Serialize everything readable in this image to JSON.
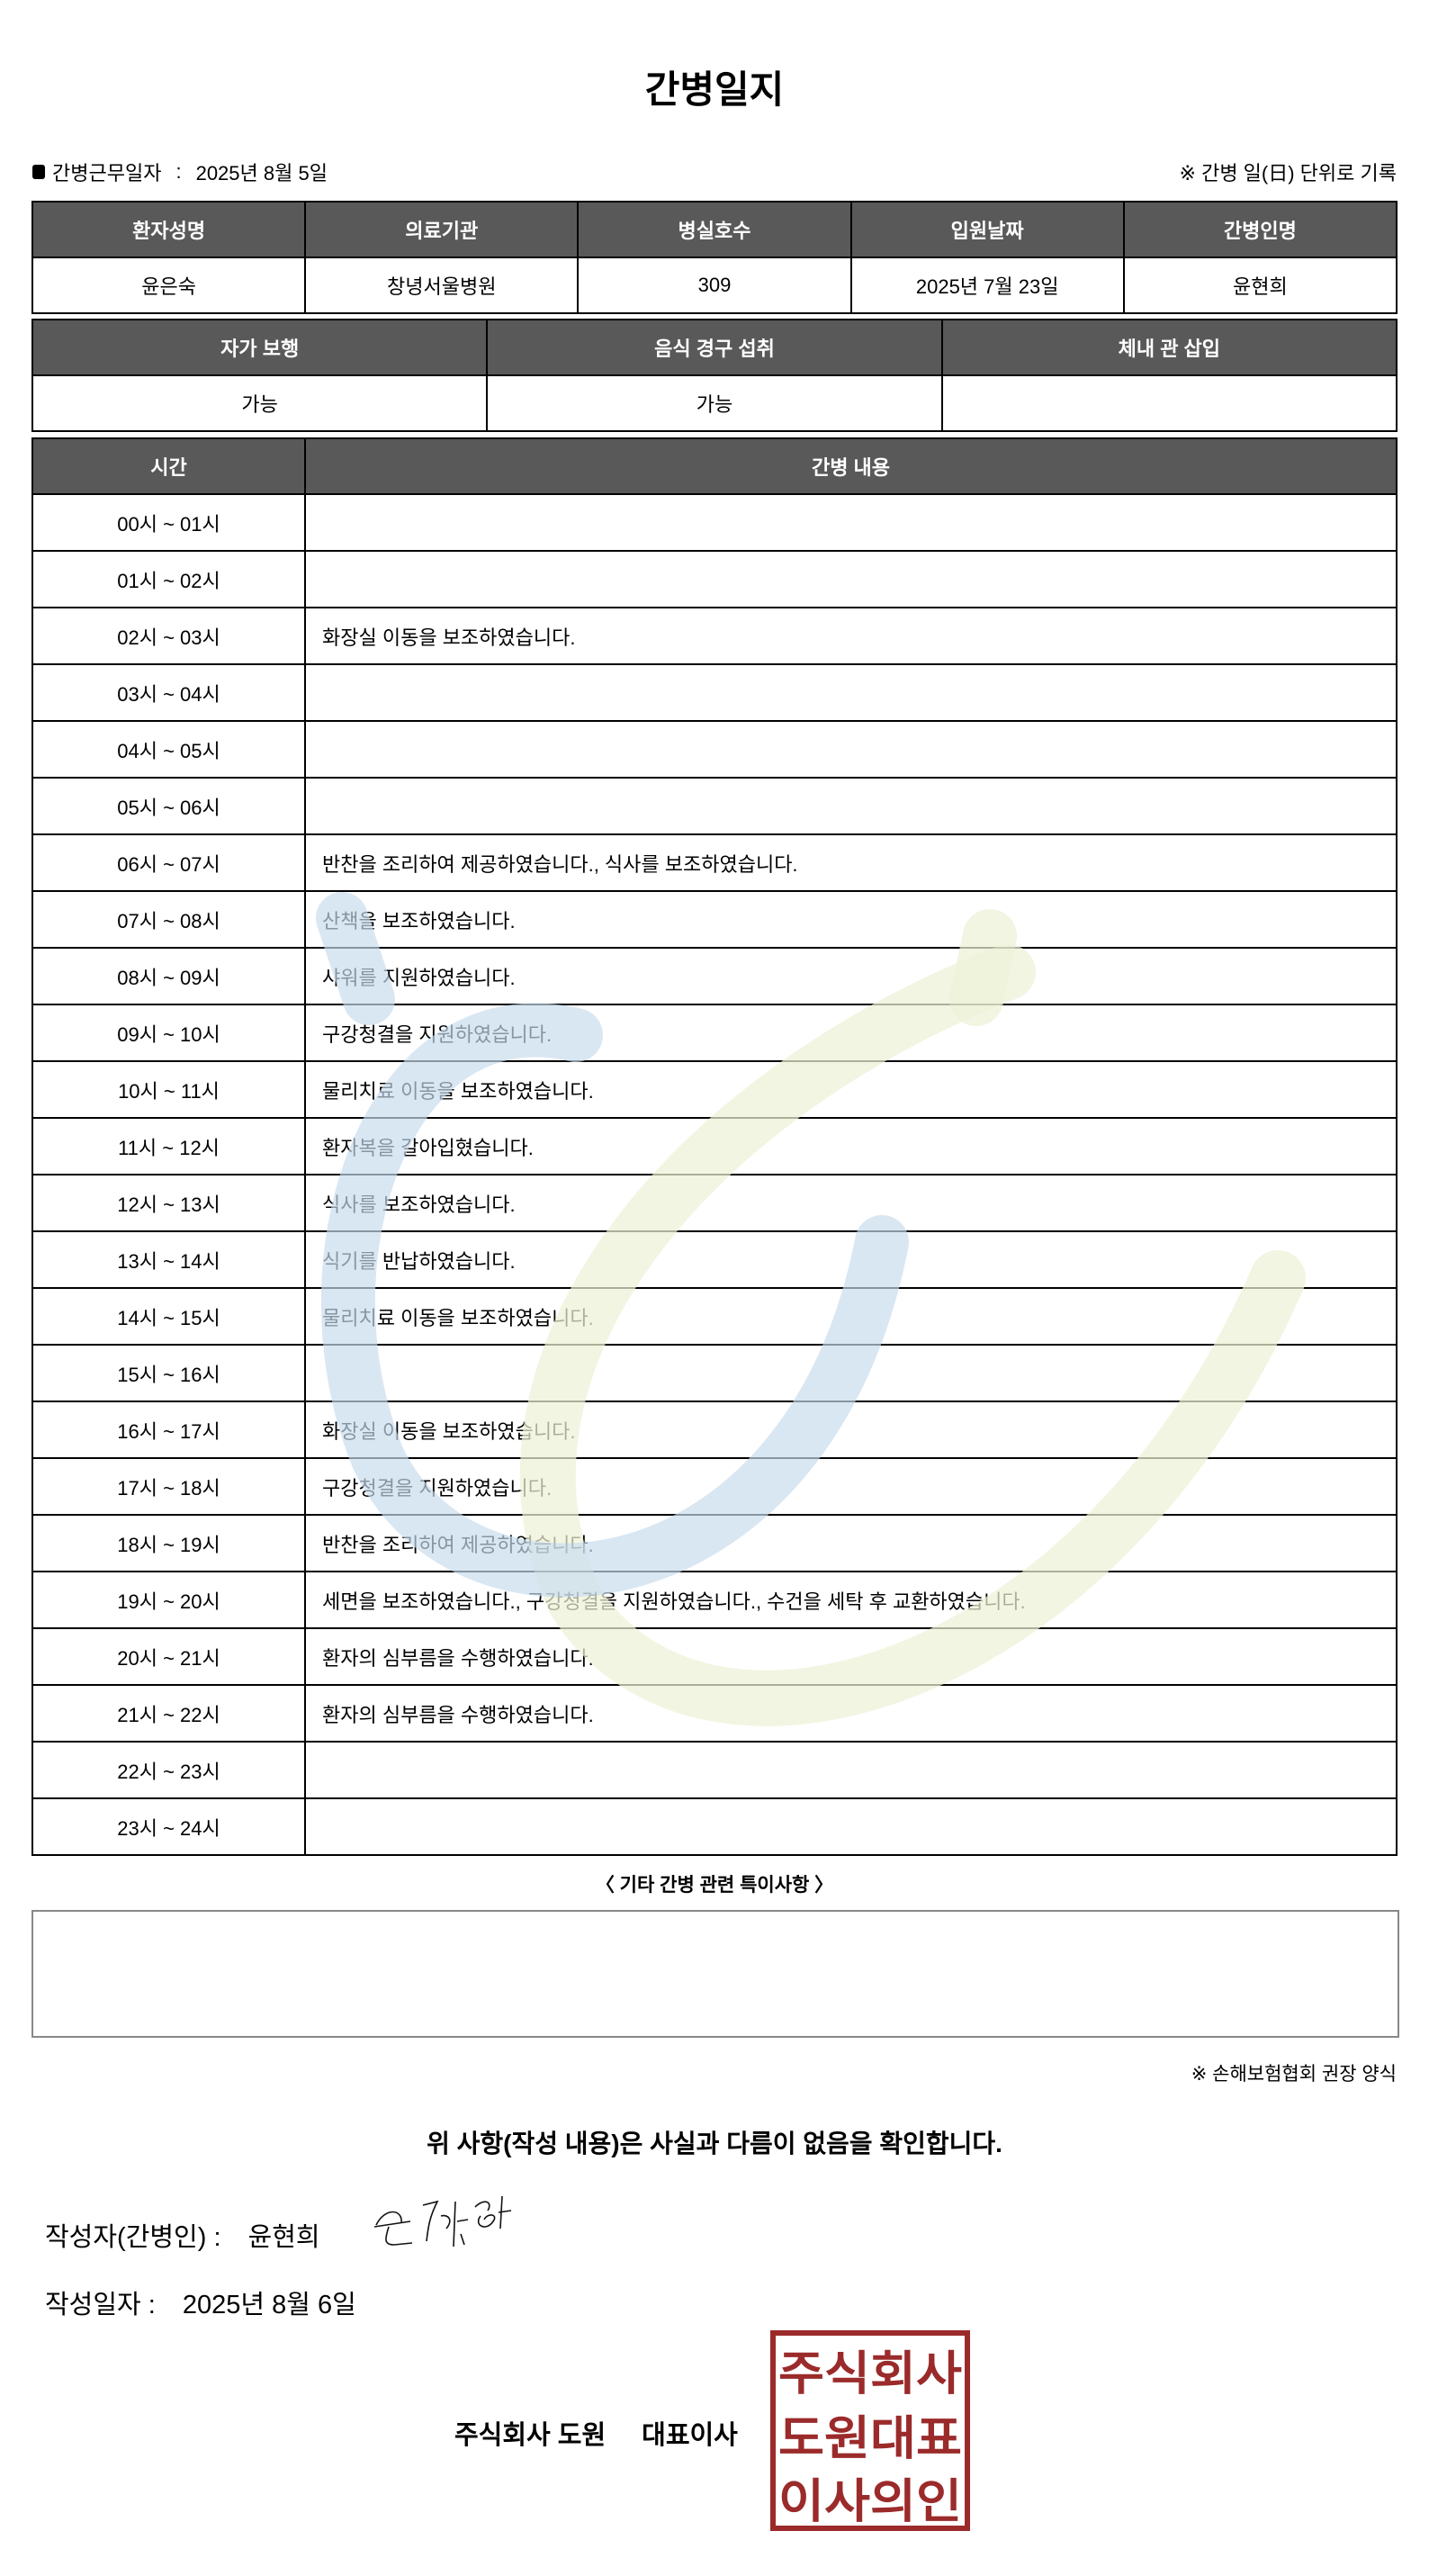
{
  "title": "간병일지",
  "info": {
    "work_date_label": "간병근무일자",
    "work_date_sep": ":",
    "work_date_value": "2025년 8월 5일",
    "unit_note": "※ 간병 일(日) 단위로 기록"
  },
  "patient_table": {
    "headers": [
      "환자성명",
      "의료기관",
      "병실호수",
      "입원날짜",
      "간병인명"
    ],
    "values": [
      "윤은숙",
      "창녕서울병원",
      "309",
      "2025년 7월 23일",
      "윤현희"
    ]
  },
  "status_table": {
    "headers": [
      "자가 보행",
      "음식 경구 섭취",
      "체내 관 삽입"
    ],
    "values": [
      "가능",
      "가능",
      ""
    ]
  },
  "log_table": {
    "headers": [
      "시간",
      "간병 내용"
    ],
    "rows": [
      {
        "time": "00시 ~ 01시",
        "content": ""
      },
      {
        "time": "01시 ~ 02시",
        "content": ""
      },
      {
        "time": "02시 ~ 03시",
        "content": "화장실 이동을 보조하였습니다."
      },
      {
        "time": "03시 ~ 04시",
        "content": ""
      },
      {
        "time": "04시 ~ 05시",
        "content": ""
      },
      {
        "time": "05시 ~ 06시",
        "content": ""
      },
      {
        "time": "06시 ~ 07시",
        "content": "반찬을 조리하여 제공하였습니다., 식사를 보조하였습니다."
      },
      {
        "time": "07시 ~ 08시",
        "content": "산책을 보조하였습니다."
      },
      {
        "time": "08시 ~ 09시",
        "content": "샤워를 지원하였습니다."
      },
      {
        "time": "09시 ~ 10시",
        "content": "구강청결을 지원하였습니다."
      },
      {
        "time": "10시 ~ 11시",
        "content": "물리치료 이동을 보조하였습니다."
      },
      {
        "time": "11시 ~ 12시",
        "content": "환자복을 갈아입혔습니다."
      },
      {
        "time": "12시 ~ 13시",
        "content": "식사를 보조하였습니다."
      },
      {
        "time": "13시 ~ 14시",
        "content": "식기를 반납하였습니다."
      },
      {
        "time": "14시 ~ 15시",
        "content": "물리치료 이동을 보조하였습니다."
      },
      {
        "time": "15시 ~ 16시",
        "content": ""
      },
      {
        "time": "16시 ~ 17시",
        "content": "화장실 이동을 보조하였습니다."
      },
      {
        "time": "17시 ~ 18시",
        "content": "구강청결을 지원하였습니다."
      },
      {
        "time": "18시 ~ 19시",
        "content": "반찬을 조리하여 제공하였습니다."
      },
      {
        "time": "19시 ~ 20시",
        "content": "세면을 보조하였습니다., 구강청결을 지원하였습니다., 수건을 세탁 후 교환하였습니다."
      },
      {
        "time": "20시 ~ 21시",
        "content": "환자의 심부름을 수행하였습니다."
      },
      {
        "time": "21시 ~ 22시",
        "content": "환자의 심부름을 수행하였습니다."
      },
      {
        "time": "22시 ~ 23시",
        "content": ""
      },
      {
        "time": "23시 ~ 24시",
        "content": ""
      }
    ]
  },
  "notes": {
    "title": "〈 기타 간병 관련 특이사항 〉",
    "value": ""
  },
  "form_note": "※ 손해보험협회 권장 양식",
  "confirm_statement": "위 사항(작성 내용)은 사실과 다름이 없음을 확인합니다.",
  "writer": {
    "label": "작성자(간병인) :",
    "name": "윤현희"
  },
  "written_date": {
    "label": "작성일자 :",
    "value": "2025년 8월 6일"
  },
  "company": {
    "name": "주식회사 도원",
    "title": "대표이사"
  },
  "stamp": {
    "text": [
      "주식회사",
      "도원대표",
      "이사의인"
    ],
    "color": "#9b2b2b"
  },
  "colors": {
    "header_bg": "#595959",
    "watermark_blue": "#c7dcee",
    "watermark_green": "#edf1d6"
  }
}
